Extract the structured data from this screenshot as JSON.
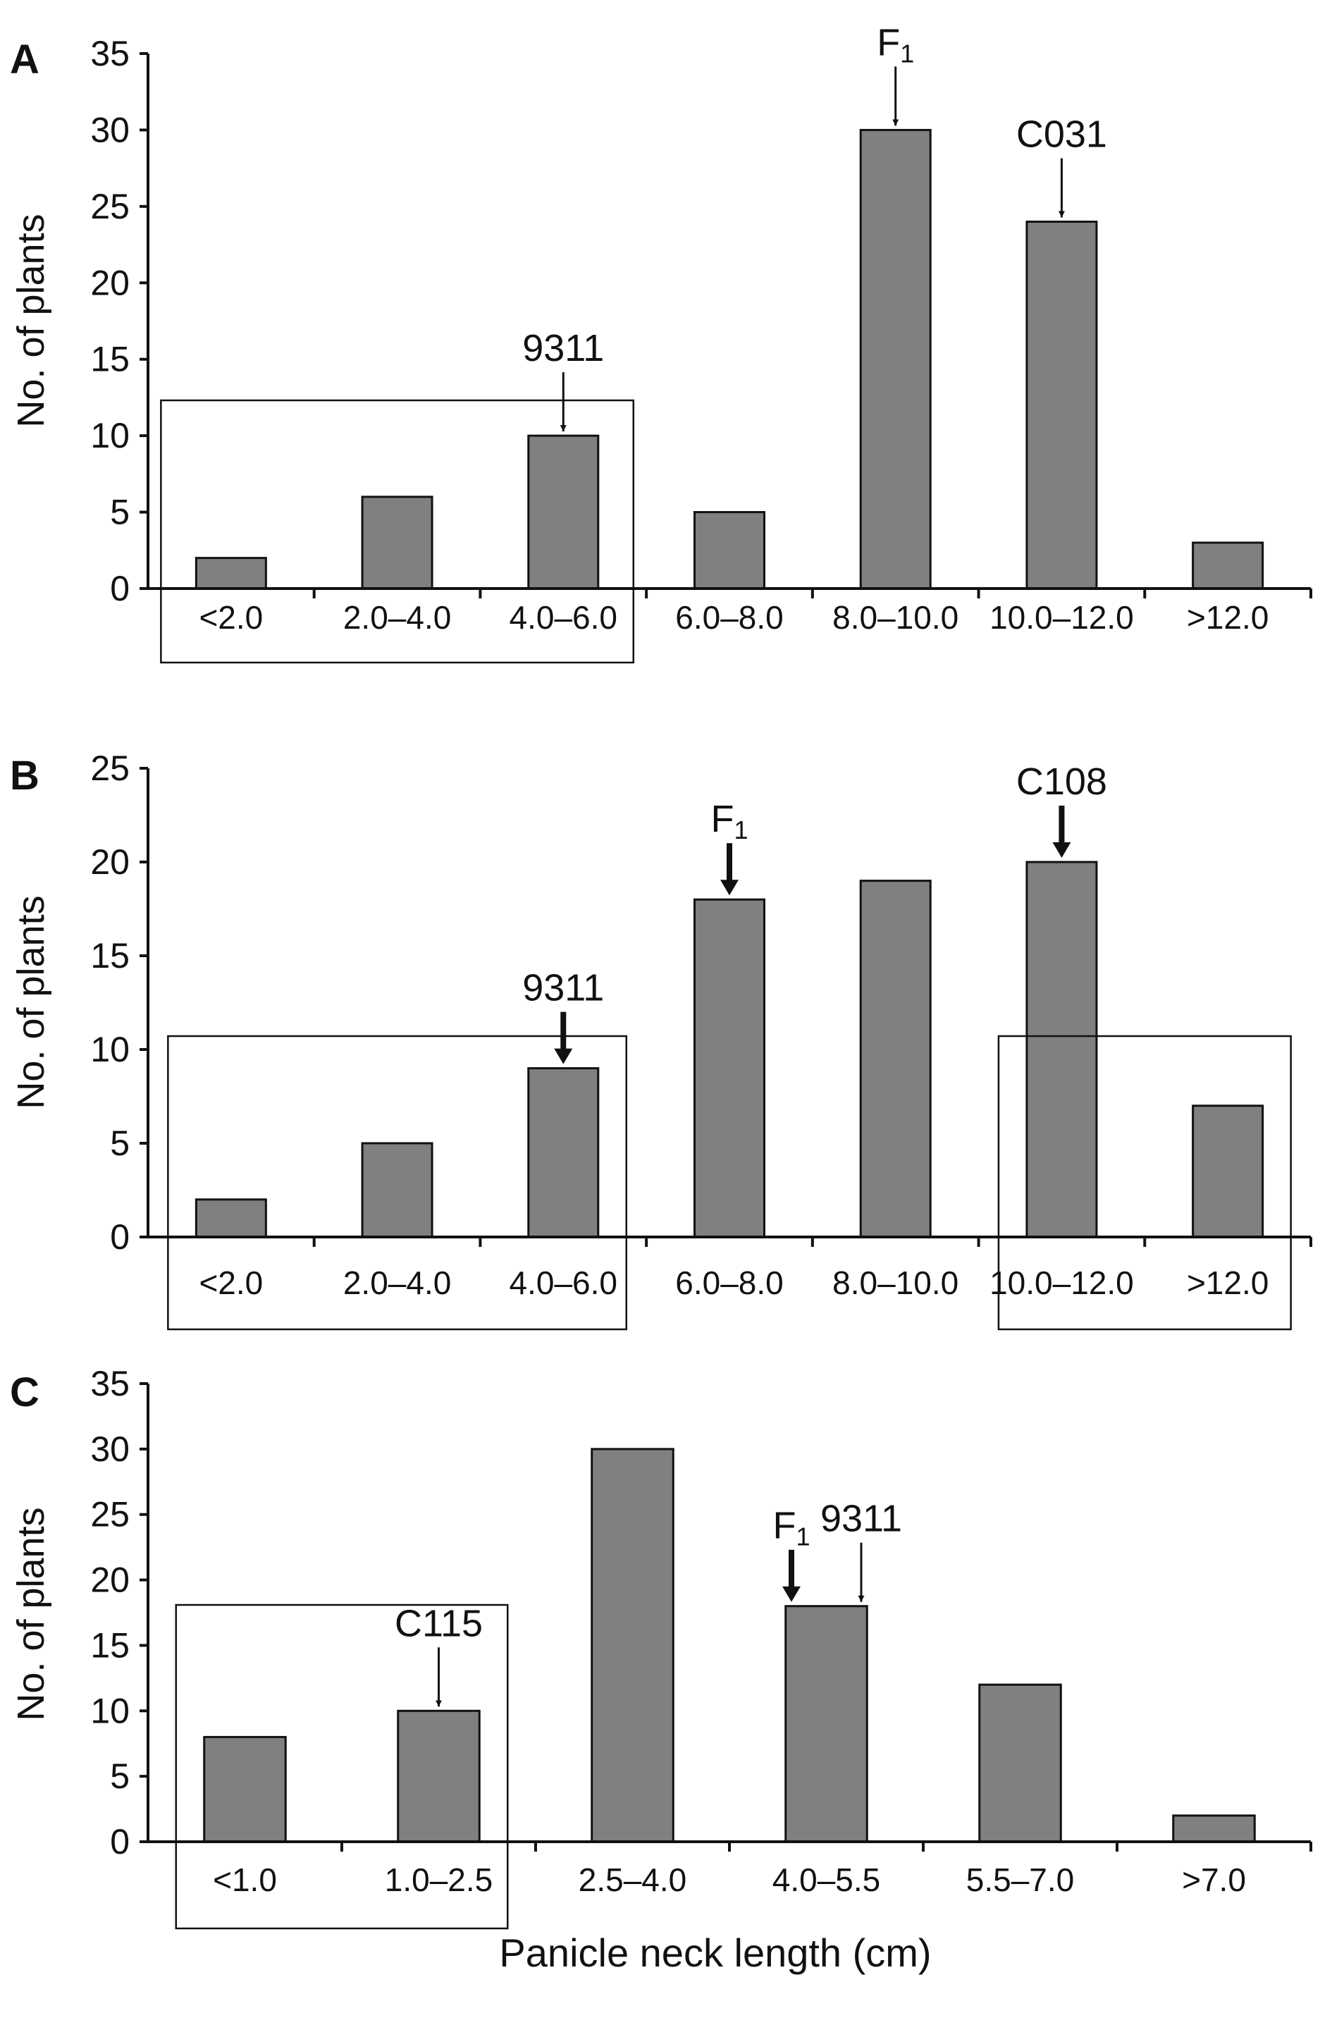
{
  "chart_data": [
    {
      "panel": "A",
      "type": "bar",
      "categories": [
        "<2.0",
        "2.0–4.0",
        "4.0–6.0",
        "6.0–8.0",
        "8.0–10.0",
        "10.0–12.0",
        ">12.0"
      ],
      "values": [
        2,
        6,
        10,
        5,
        30,
        24,
        3
      ],
      "ylabel": "No. of plants",
      "ylim": [
        0,
        35
      ],
      "yticks": [
        0,
        5,
        10,
        15,
        20,
        25,
        30,
        35
      ],
      "bar_color": "#808080",
      "annotations": [
        {
          "text": "9311",
          "category_index": 2,
          "arrow": "thin"
        },
        {
          "text": "F",
          "subscript": "1",
          "category_index": 4,
          "arrow": "thin"
        },
        {
          "text": "C031",
          "category_index": 5,
          "arrow": "thin"
        }
      ],
      "boxes": [
        {
          "from": 0,
          "to": 2
        }
      ]
    },
    {
      "panel": "B",
      "type": "bar",
      "categories": [
        "<2.0",
        "2.0–4.0",
        "4.0–6.0",
        "6.0–8.0",
        "8.0–10.0",
        "10.0–12.0",
        ">12.0"
      ],
      "values": [
        2,
        5,
        9,
        18,
        19,
        20,
        7
      ],
      "ylabel": "No. of plants",
      "ylim": [
        0,
        25
      ],
      "yticks": [
        0,
        5,
        10,
        15,
        20,
        25
      ],
      "bar_color": "#808080",
      "annotations": [
        {
          "text": "9311",
          "category_index": 2,
          "arrow": "thick"
        },
        {
          "text": "F",
          "subscript": "1",
          "category_index": 3,
          "arrow": "thick"
        },
        {
          "text": "C108",
          "category_index": 5,
          "arrow": "thick"
        }
      ],
      "boxes": [
        {
          "from": 0,
          "to": 2
        },
        {
          "from": 5,
          "to": 6
        }
      ]
    },
    {
      "panel": "C",
      "type": "bar",
      "categories": [
        "<1.0",
        "1.0–2.5",
        "2.5–4.0",
        "4.0–5.5",
        "5.5–7.0",
        ">7.0"
      ],
      "values": [
        8,
        10,
        30,
        18,
        12,
        2
      ],
      "ylabel": "No. of plants",
      "xlabel": "Panicle neck length (cm)",
      "ylim": [
        0,
        35
      ],
      "yticks": [
        0,
        5,
        10,
        15,
        20,
        25,
        30,
        35
      ],
      "bar_color": "#808080",
      "annotations": [
        {
          "text": "C115",
          "category_index": 1,
          "arrow": "thin"
        },
        {
          "text": "F",
          "subscript": "1",
          "category_index": 3,
          "arrow": "thick",
          "offset": -0.18
        },
        {
          "text": "9311",
          "category_index": 3,
          "arrow": "thin",
          "offset": 0.18
        }
      ],
      "boxes": [
        {
          "from": 0,
          "to": 1
        }
      ]
    }
  ]
}
